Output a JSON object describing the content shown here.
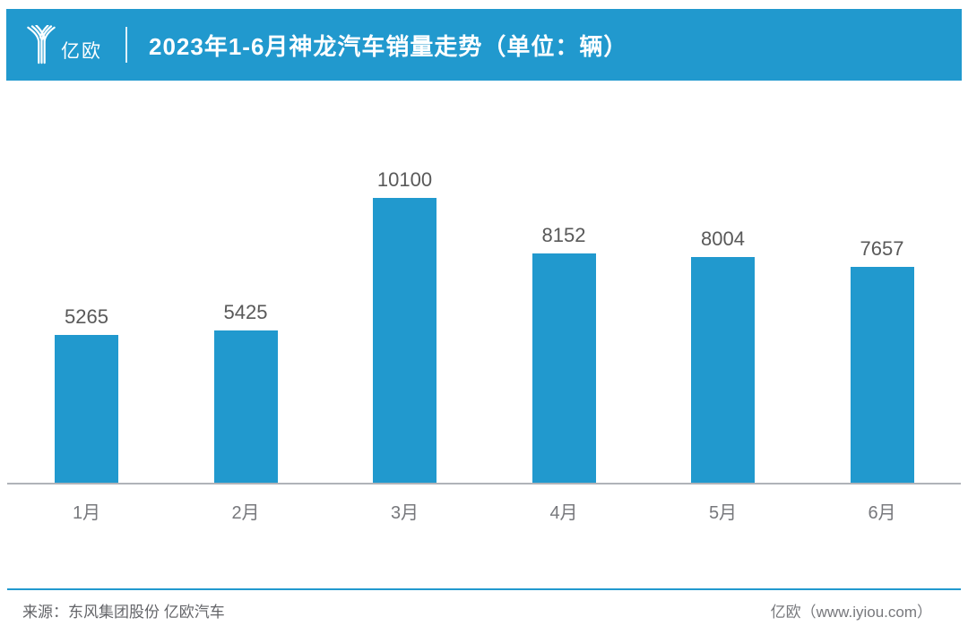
{
  "header": {
    "logo_text": "亿欧",
    "title": "2023年1-6月神龙汽车销量走势（单位：辆）"
  },
  "chart_data": {
    "type": "bar",
    "title": "2023年1-6月神龙汽车销量走势（单位：辆）",
    "categories": [
      "1月",
      "2月",
      "3月",
      "4月",
      "5月",
      "6月"
    ],
    "values": [
      5265,
      5425,
      10100,
      8152,
      8004,
      7657
    ],
    "unit": "辆",
    "xlabel": "",
    "ylabel": "",
    "ylim": [
      0,
      11000
    ],
    "grid": false,
    "legend_position": "none",
    "bar_color": "#2199CE",
    "value_labels_shown": true
  },
  "footer": {
    "source": "来源：东风集团股份 亿欧汽车",
    "credit": "亿欧（www.iyiou.com）"
  },
  "colors": {
    "brand_blue": "#2199CE",
    "value_label": "#595959",
    "category_label": "#77787c",
    "axis_line": "#b0b3b9",
    "footer_text": "#646569",
    "header_text": "#ffffff",
    "background": "#ffffff"
  }
}
